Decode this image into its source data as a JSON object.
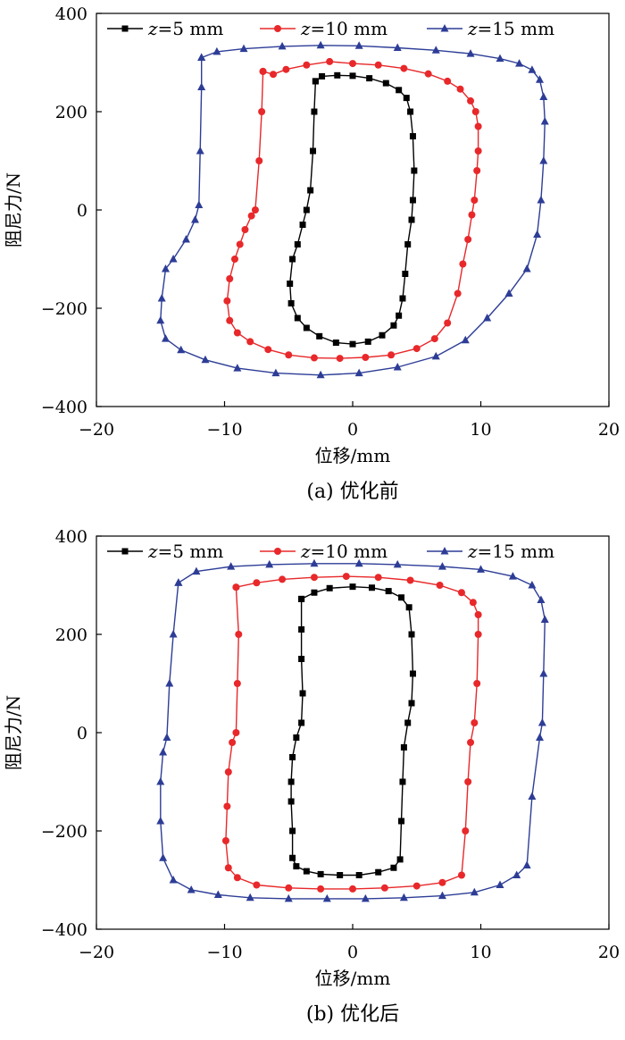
{
  "chart_data": [
    {
      "type": "line",
      "caption": "(a)  优化前",
      "xlabel": "位移/mm",
      "ylabel": "阻尼力/N",
      "xlim": [
        -20,
        20
      ],
      "ylim": [
        -400,
        400
      ],
      "xticks": [
        "−20",
        "−10",
        "0",
        "10",
        "20"
      ],
      "yticks": [
        "400",
        "200",
        "0",
        "−200",
        "−400"
      ],
      "legend_position": "top",
      "series": [
        {
          "name": "z=5 mm",
          "name_var": "z",
          "name_rest": "=5 mm",
          "color": "#000000",
          "marker": "square",
          "points": [
            [
              -2.9,
              262
            ],
            [
              -2.4,
              272
            ],
            [
              -1.2,
              274
            ],
            [
              0,
              273
            ],
            [
              1.3,
              268
            ],
            [
              2.6,
              258
            ],
            [
              3.6,
              244
            ],
            [
              4.2,
              228
            ],
            [
              4.5,
              200
            ],
            [
              4.7,
              150
            ],
            [
              4.8,
              80
            ],
            [
              4.7,
              20
            ],
            [
              4.6,
              -20
            ],
            [
              4.3,
              -70
            ],
            [
              4.1,
              -130
            ],
            [
              3.9,
              -180
            ],
            [
              3.6,
              -215
            ],
            [
              3.2,
              -235
            ],
            [
              2.3,
              -255
            ],
            [
              1.2,
              -268
            ],
            [
              0,
              -273
            ],
            [
              -1.3,
              -270
            ],
            [
              -2.6,
              -257
            ],
            [
              -3.6,
              -240
            ],
            [
              -4.3,
              -220
            ],
            [
              -4.8,
              -190
            ],
            [
              -4.9,
              -150
            ],
            [
              -4.7,
              -100
            ],
            [
              -4.3,
              -70
            ],
            [
              -3.9,
              -30
            ],
            [
              -3.6,
              0
            ],
            [
              -3.3,
              40
            ],
            [
              -3.1,
              120
            ],
            [
              -3.0,
              200
            ],
            [
              -2.9,
              262
            ]
          ]
        },
        {
          "name": "z=10 mm",
          "name_var": "z",
          "name_rest": "=10 mm",
          "color": "#e8282a",
          "marker": "circle",
          "points": [
            [
              -7.0,
              282
            ],
            [
              -6.2,
              276
            ],
            [
              -5.2,
              286
            ],
            [
              -3.6,
              295
            ],
            [
              -1.8,
              302
            ],
            [
              0,
              298
            ],
            [
              2.0,
              295
            ],
            [
              4.0,
              288
            ],
            [
              5.9,
              277
            ],
            [
              7.4,
              262
            ],
            [
              8.4,
              246
            ],
            [
              9.2,
              222
            ],
            [
              9.6,
              200
            ],
            [
              9.8,
              170
            ],
            [
              9.8,
              120
            ],
            [
              9.7,
              80
            ],
            [
              9.5,
              20
            ],
            [
              9.3,
              -10
            ],
            [
              9.0,
              -60
            ],
            [
              8.6,
              -110
            ],
            [
              8.2,
              -170
            ],
            [
              7.4,
              -230
            ],
            [
              6.4,
              -262
            ],
            [
              5.0,
              -282
            ],
            [
              3.0,
              -295
            ],
            [
              1.0,
              -300
            ],
            [
              -1.0,
              -302
            ],
            [
              -3.0,
              -301
            ],
            [
              -5.0,
              -295
            ],
            [
              -6.6,
              -284
            ],
            [
              -8.0,
              -268
            ],
            [
              -9.0,
              -250
            ],
            [
              -9.6,
              -225
            ],
            [
              -9.8,
              -185
            ],
            [
              -9.6,
              -140
            ],
            [
              -9.2,
              -100
            ],
            [
              -8.8,
              -70
            ],
            [
              -8.4,
              -40
            ],
            [
              -7.9,
              -12
            ],
            [
              -7.6,
              0
            ],
            [
              -7.3,
              100
            ],
            [
              -7.1,
              200
            ],
            [
              -7.0,
              282
            ]
          ]
        },
        {
          "name": "z=15 mm",
          "name_var": "z",
          "name_rest": "=15 mm",
          "color": "#2d3d96",
          "marker": "triangle",
          "points": [
            [
              -11.8,
              310
            ],
            [
              -10.6,
              322
            ],
            [
              -8.5,
              328
            ],
            [
              -5.5,
              333
            ],
            [
              -2.5,
              335
            ],
            [
              0.5,
              334
            ],
            [
              3.5,
              330
            ],
            [
              6.5,
              325
            ],
            [
              9.2,
              318
            ],
            [
              11.5,
              308
            ],
            [
              13.0,
              298
            ],
            [
              14.0,
              285
            ],
            [
              14.6,
              265
            ],
            [
              14.9,
              230
            ],
            [
              15.0,
              180
            ],
            [
              14.9,
              100
            ],
            [
              14.7,
              20
            ],
            [
              14.4,
              -50
            ],
            [
              13.6,
              -120
            ],
            [
              12.2,
              -170
            ],
            [
              10.5,
              -220
            ],
            [
              8.8,
              -265
            ],
            [
              6.5,
              -298
            ],
            [
              3.5,
              -320
            ],
            [
              0.5,
              -332
            ],
            [
              -2.5,
              -336
            ],
            [
              -6.0,
              -332
            ],
            [
              -9.0,
              -322
            ],
            [
              -11.5,
              -305
            ],
            [
              -13.4,
              -285
            ],
            [
              -14.6,
              -262
            ],
            [
              -15.0,
              -225
            ],
            [
              -14.9,
              -180
            ],
            [
              -14.6,
              -120
            ],
            [
              -14.0,
              -100
            ],
            [
              -13.0,
              -60
            ],
            [
              -12.3,
              -20
            ],
            [
              -12.0,
              10
            ],
            [
              -11.9,
              120
            ],
            [
              -11.8,
              250
            ],
            [
              -11.8,
              310
            ]
          ]
        }
      ]
    },
    {
      "type": "line",
      "caption": "(b)  优化后",
      "xlabel": "位移/mm",
      "ylabel": "阻尼力/N",
      "xlim": [
        -20,
        20
      ],
      "ylim": [
        -400,
        400
      ],
      "xticks": [
        "−20",
        "−10",
        "0",
        "10",
        "20"
      ],
      "yticks": [
        "400",
        "200",
        "0",
        "−200",
        "−400"
      ],
      "legend_position": "top",
      "series": [
        {
          "name": "z=5 mm",
          "name_var": "z",
          "name_rest": "=5 mm",
          "color": "#000000",
          "marker": "square",
          "points": [
            [
              -4.0,
              272
            ],
            [
              -3.0,
              285
            ],
            [
              -1.8,
              294
            ],
            [
              0,
              297
            ],
            [
              1.5,
              295
            ],
            [
              2.8,
              288
            ],
            [
              3.8,
              275
            ],
            [
              4.4,
              255
            ],
            [
              4.6,
              200
            ],
            [
              4.7,
              120
            ],
            [
              4.6,
              60
            ],
            [
              4.3,
              20
            ],
            [
              4.0,
              -30
            ],
            [
              3.9,
              -100
            ],
            [
              3.8,
              -180
            ],
            [
              3.7,
              -258
            ],
            [
              3.2,
              -275
            ],
            [
              2.0,
              -284
            ],
            [
              0.5,
              -290
            ],
            [
              -1.0,
              -290
            ],
            [
              -2.5,
              -288
            ],
            [
              -3.6,
              -282
            ],
            [
              -4.4,
              -272
            ],
            [
              -4.7,
              -255
            ],
            [
              -4.7,
              -200
            ],
            [
              -4.8,
              -140
            ],
            [
              -4.8,
              -100
            ],
            [
              -4.7,
              -50
            ],
            [
              -4.4,
              -10
            ],
            [
              -4.0,
              20
            ],
            [
              -3.9,
              80
            ],
            [
              -4.0,
              150
            ],
            [
              -4.0,
              210
            ],
            [
              -4.0,
              272
            ]
          ]
        },
        {
          "name": "z=10 mm",
          "name_var": "z",
          "name_rest": "=10 mm",
          "color": "#e8282a",
          "marker": "circle",
          "points": [
            [
              -9.1,
              296
            ],
            [
              -7.5,
              305
            ],
            [
              -5.5,
              312
            ],
            [
              -3.0,
              316
            ],
            [
              -0.5,
              318
            ],
            [
              2.0,
              316
            ],
            [
              4.5,
              310
            ],
            [
              6.8,
              300
            ],
            [
              8.5,
              285
            ],
            [
              9.4,
              265
            ],
            [
              9.8,
              240
            ],
            [
              9.8,
              200
            ],
            [
              9.7,
              100
            ],
            [
              9.5,
              20
            ],
            [
              9.2,
              -20
            ],
            [
              9.0,
              -100
            ],
            [
              8.8,
              -200
            ],
            [
              8.5,
              -290
            ],
            [
              7.0,
              -305
            ],
            [
              5.0,
              -312
            ],
            [
              2.5,
              -316
            ],
            [
              0,
              -318
            ],
            [
              -2.5,
              -318
            ],
            [
              -5.0,
              -316
            ],
            [
              -7.5,
              -310
            ],
            [
              -9.0,
              -295
            ],
            [
              -9.7,
              -275
            ],
            [
              -9.9,
              -220
            ],
            [
              -9.8,
              -150
            ],
            [
              -9.7,
              -80
            ],
            [
              -9.4,
              -20
            ],
            [
              -9.1,
              0
            ],
            [
              -9.0,
              100
            ],
            [
              -8.9,
              200
            ],
            [
              -9.1,
              296
            ]
          ]
        },
        {
          "name": "z=15 mm",
          "name_var": "z",
          "name_rest": "=15 mm",
          "color": "#2d3d96",
          "marker": "triangle",
          "points": [
            [
              -13.6,
              305
            ],
            [
              -12.2,
              328
            ],
            [
              -9.5,
              338
            ],
            [
              -6.5,
              342
            ],
            [
              -3.0,
              344
            ],
            [
              0.5,
              344
            ],
            [
              3.5,
              342
            ],
            [
              7.0,
              338
            ],
            [
              10.0,
              332
            ],
            [
              12.5,
              318
            ],
            [
              14.0,
              300
            ],
            [
              14.7,
              270
            ],
            [
              15.0,
              230
            ],
            [
              14.9,
              120
            ],
            [
              14.8,
              20
            ],
            [
              14.6,
              -10
            ],
            [
              14.0,
              -130
            ],
            [
              13.6,
              -270
            ],
            [
              12.8,
              -290
            ],
            [
              11.5,
              -310
            ],
            [
              9.5,
              -325
            ],
            [
              7.0,
              -332
            ],
            [
              4.0,
              -336
            ],
            [
              1.0,
              -338
            ],
            [
              -2.0,
              -338
            ],
            [
              -5.0,
              -338
            ],
            [
              -8.0,
              -336
            ],
            [
              -10.5,
              -330
            ],
            [
              -12.6,
              -320
            ],
            [
              -14.0,
              -300
            ],
            [
              -14.8,
              -255
            ],
            [
              -15.0,
              -180
            ],
            [
              -15.0,
              -100
            ],
            [
              -14.8,
              -40
            ],
            [
              -14.5,
              -10
            ],
            [
              -14.3,
              100
            ],
            [
              -14.0,
              200
            ],
            [
              -13.6,
              305
            ]
          ]
        }
      ]
    }
  ]
}
